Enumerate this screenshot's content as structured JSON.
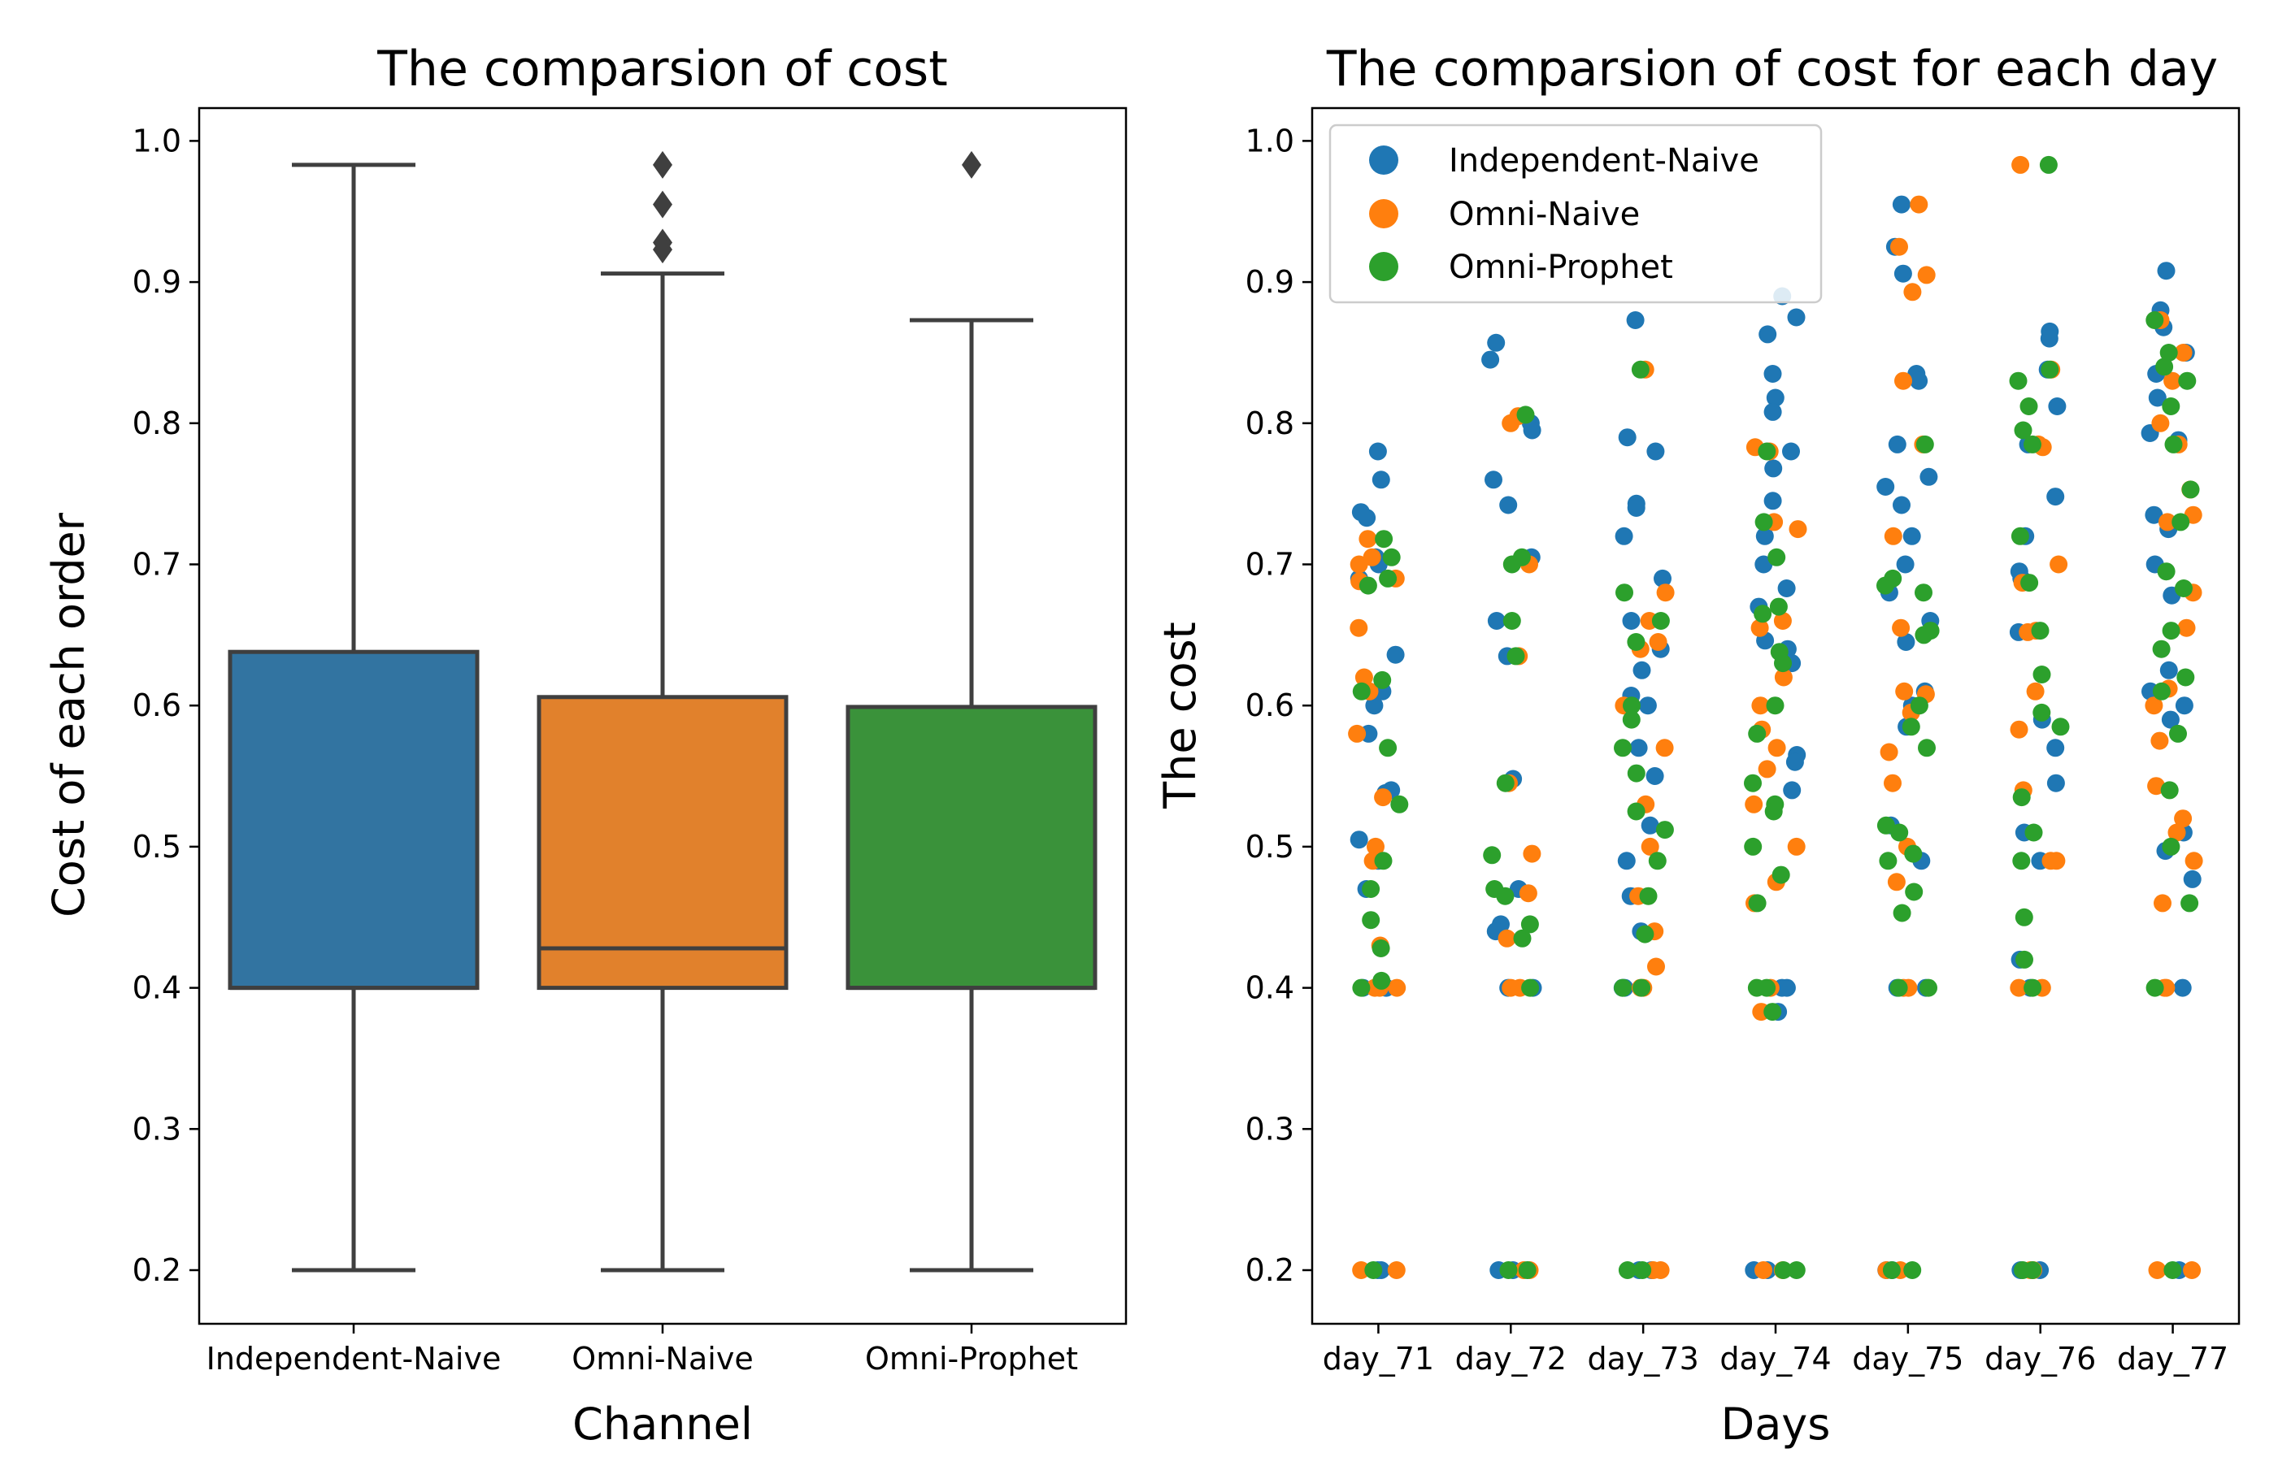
{
  "figure": {
    "colors": {
      "Independent-Naive": "#1f77b4",
      "Omni-Naive": "#ff7f0e",
      "Omni-Prophet": "#2ca02c"
    }
  },
  "chart_data": [
    {
      "type": "box",
      "title": "The comparsion of cost",
      "xlabel": "Channel",
      "ylabel": "Cost of each order",
      "categories": [
        "Independent-Naive",
        "Omni-Naive",
        "Omni-Prophet"
      ],
      "box_colors": [
        "#3274a1",
        "#e1812c",
        "#3a923a"
      ],
      "ylim": [
        0.163,
        1.023
      ],
      "yticks": [
        "0.2",
        "0.3",
        "0.4",
        "0.5",
        "0.6",
        "0.7",
        "0.8",
        "0.9",
        "1.0"
      ],
      "boxes": [
        {
          "category": "Independent-Naive",
          "whisker_low": 0.2,
          "q1": 0.4,
          "median": 0.4,
          "q3": 0.638,
          "whisker_high": 0.983,
          "outliers": []
        },
        {
          "category": "Omni-Naive",
          "whisker_low": 0.2,
          "q1": 0.4,
          "median": 0.428,
          "q3": 0.606,
          "whisker_high": 0.906,
          "outliers": [
            0.983,
            0.955,
            0.928,
            0.923
          ]
        },
        {
          "category": "Omni-Prophet",
          "whisker_low": 0.2,
          "q1": 0.4,
          "median": 0.4,
          "q3": 0.599,
          "whisker_high": 0.873,
          "outliers": [
            0.983
          ]
        }
      ]
    },
    {
      "type": "scatter",
      "title": "The comparsion of cost for each day",
      "xlabel": "Days",
      "ylabel": "The cost",
      "categories": [
        "day_71",
        "day_72",
        "day_73",
        "day_74",
        "day_75",
        "day_76",
        "day_77"
      ],
      "ylim": [
        0.163,
        1.023
      ],
      "yticks": [
        "0.2",
        "0.3",
        "0.4",
        "0.5",
        "0.6",
        "0.7",
        "0.8",
        "0.9",
        "1.0"
      ],
      "legend": {
        "position": "upper-left",
        "entries": [
          "Independent-Naive",
          "Omni-Naive",
          "Omni-Prophet"
        ]
      },
      "series": [
        {
          "name": "Independent-Naive",
          "values": [
            [
              0.78,
              0.76,
              0.737,
              0.733,
              0.705,
              0.7,
              0.69,
              0.636,
              0.61,
              0.6,
              0.58,
              0.54,
              0.538,
              0.505,
              0.49,
              0.47,
              0.4,
              0.4,
              0.2,
              0.2
            ],
            [
              0.857,
              0.845,
              0.8,
              0.795,
              0.76,
              0.742,
              0.705,
              0.66,
              0.635,
              0.548,
              0.47,
              0.445,
              0.44,
              0.4,
              0.4,
              0.2,
              0.2
            ],
            [
              0.873,
              0.79,
              0.78,
              0.743,
              0.74,
              0.72,
              0.69,
              0.66,
              0.64,
              0.625,
              0.607,
              0.6,
              0.57,
              0.55,
              0.515,
              0.49,
              0.465,
              0.44,
              0.4,
              0.4,
              0.2,
              0.2
            ],
            [
              0.89,
              0.875,
              0.863,
              0.835,
              0.818,
              0.808,
              0.78,
              0.768,
              0.745,
              0.72,
              0.7,
              0.683,
              0.67,
              0.646,
              0.64,
              0.63,
              0.565,
              0.56,
              0.54,
              0.4,
              0.4,
              0.383,
              0.2,
              0.2
            ],
            [
              0.955,
              0.925,
              0.906,
              0.835,
              0.83,
              0.785,
              0.762,
              0.755,
              0.742,
              0.72,
              0.7,
              0.68,
              0.66,
              0.645,
              0.61,
              0.6,
              0.585,
              0.515,
              0.49,
              0.4,
              0.4,
              0.2,
              0.2
            ],
            [
              0.865,
              0.86,
              0.838,
              0.812,
              0.785,
              0.748,
              0.72,
              0.695,
              0.69,
              0.652,
              0.59,
              0.57,
              0.545,
              0.51,
              0.49,
              0.42,
              0.4,
              0.2,
              0.2
            ],
            [
              0.908,
              0.88,
              0.868,
              0.85,
              0.835,
              0.818,
              0.793,
              0.788,
              0.735,
              0.725,
              0.7,
              0.678,
              0.625,
              0.61,
              0.6,
              0.59,
              0.51,
              0.497,
              0.477,
              0.4,
              0.2
            ]
          ]
        },
        {
          "name": "Omni-Naive",
          "values": [
            [
              0.718,
              0.705,
              0.7,
              0.69,
              0.688,
              0.655,
              0.62,
              0.61,
              0.58,
              0.535,
              0.5,
              0.49,
              0.43,
              0.4,
              0.4,
              0.4,
              0.2,
              0.2
            ],
            [
              0.805,
              0.8,
              0.7,
              0.635,
              0.545,
              0.495,
              0.467,
              0.435,
              0.4,
              0.4,
              0.2,
              0.2
            ],
            [
              0.838,
              0.68,
              0.66,
              0.645,
              0.64,
              0.6,
              0.57,
              0.53,
              0.5,
              0.465,
              0.44,
              0.415,
              0.4,
              0.4,
              0.2,
              0.2
            ],
            [
              0.783,
              0.78,
              0.73,
              0.725,
              0.66,
              0.655,
              0.62,
              0.6,
              0.583,
              0.57,
              0.555,
              0.53,
              0.5,
              0.475,
              0.46,
              0.4,
              0.383,
              0.2,
              0.2
            ],
            [
              0.955,
              0.925,
              0.905,
              0.893,
              0.83,
              0.785,
              0.72,
              0.655,
              0.61,
              0.608,
              0.595,
              0.567,
              0.545,
              0.5,
              0.475,
              0.4,
              0.4,
              0.2,
              0.2
            ],
            [
              0.983,
              0.838,
              0.785,
              0.783,
              0.7,
              0.687,
              0.653,
              0.652,
              0.61,
              0.583,
              0.54,
              0.49,
              0.49,
              0.4,
              0.4,
              0.2,
              0.2
            ],
            [
              0.873,
              0.85,
              0.83,
              0.8,
              0.785,
              0.753,
              0.735,
              0.73,
              0.68,
              0.655,
              0.612,
              0.6,
              0.575,
              0.543,
              0.52,
              0.51,
              0.49,
              0.46,
              0.4,
              0.4,
              0.2,
              0.2
            ]
          ]
        },
        {
          "name": "Omni-Prophet",
          "values": [
            [
              0.718,
              0.705,
              0.69,
              0.685,
              0.618,
              0.61,
              0.57,
              0.53,
              0.49,
              0.47,
              0.448,
              0.428,
              0.405,
              0.4,
              0.2
            ],
            [
              0.806,
              0.705,
              0.7,
              0.66,
              0.635,
              0.545,
              0.494,
              0.47,
              0.465,
              0.445,
              0.435,
              0.4,
              0.2,
              0.2
            ],
            [
              0.838,
              0.68,
              0.66,
              0.645,
              0.6,
              0.59,
              0.57,
              0.552,
              0.525,
              0.512,
              0.49,
              0.465,
              0.438,
              0.4,
              0.4,
              0.2,
              0.2
            ],
            [
              0.78,
              0.73,
              0.705,
              0.67,
              0.665,
              0.638,
              0.63,
              0.6,
              0.58,
              0.545,
              0.53,
              0.525,
              0.5,
              0.48,
              0.46,
              0.4,
              0.4,
              0.383,
              0.2,
              0.2
            ],
            [
              0.785,
              0.69,
              0.685,
              0.68,
              0.653,
              0.65,
              0.6,
              0.585,
              0.57,
              0.515,
              0.51,
              0.495,
              0.49,
              0.468,
              0.453,
              0.4,
              0.4,
              0.2,
              0.2
            ],
            [
              0.983,
              0.838,
              0.83,
              0.812,
              0.795,
              0.785,
              0.72,
              0.687,
              0.653,
              0.622,
              0.595,
              0.585,
              0.535,
              0.51,
              0.49,
              0.45,
              0.42,
              0.4,
              0.2,
              0.2
            ],
            [
              0.873,
              0.85,
              0.84,
              0.83,
              0.812,
              0.785,
              0.753,
              0.73,
              0.695,
              0.683,
              0.653,
              0.64,
              0.62,
              0.61,
              0.58,
              0.54,
              0.5,
              0.46,
              0.4,
              0.2
            ]
          ]
        }
      ]
    }
  ]
}
